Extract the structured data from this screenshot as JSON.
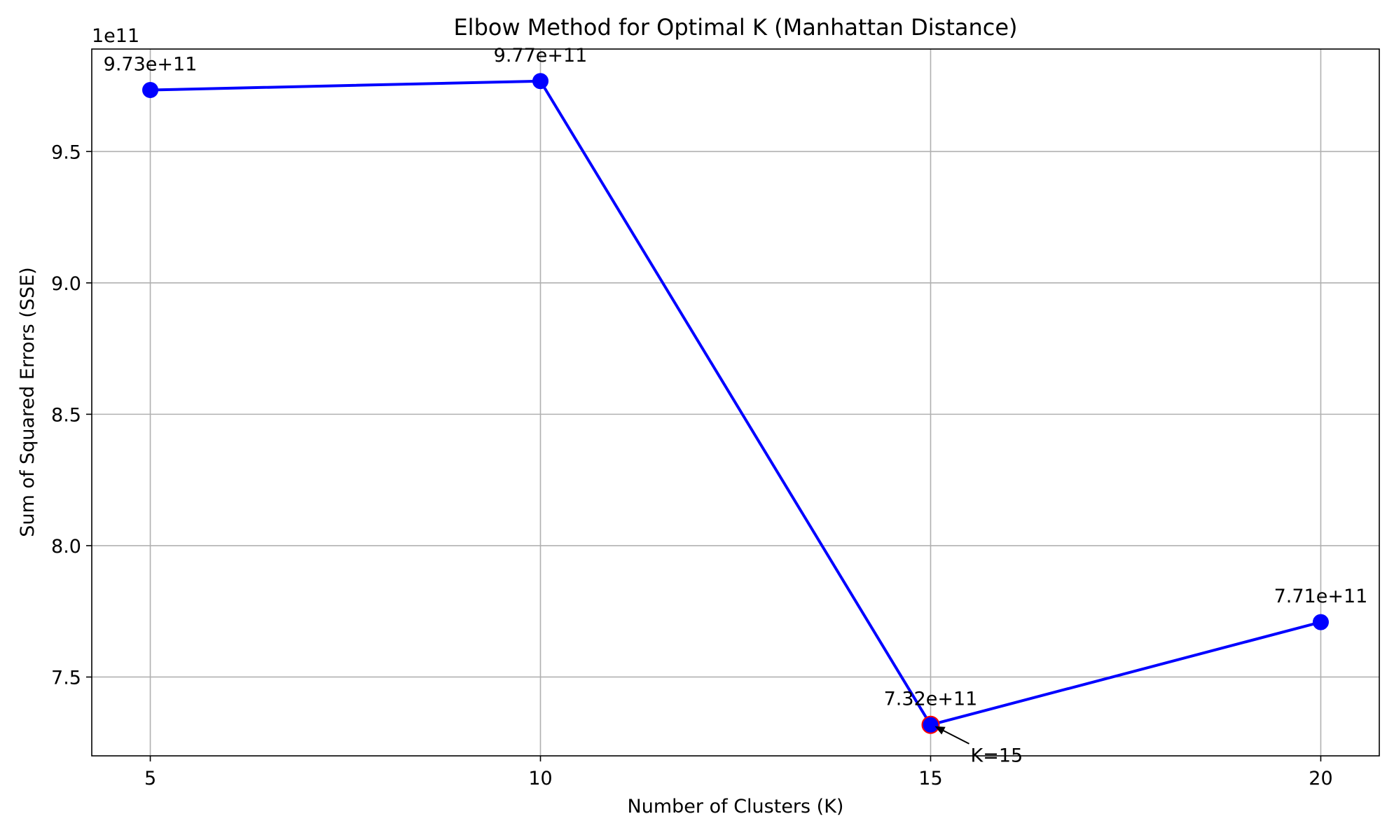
{
  "chart_data": {
    "type": "line",
    "title": "Elbow Method for Optimal K (Manhattan Distance)",
    "xlabel": "Number of Clusters (K)",
    "ylabel": "Sum of Squared Errors (SSE)",
    "offset_label": "1e11",
    "x": [
      5,
      10,
      15,
      20
    ],
    "y": [
      973400000000.0,
      976800000000.0,
      731800000000.0,
      770900000000.0
    ],
    "point_labels": [
      "9.73e+11",
      "9.77e+11",
      "7.32e+11",
      "7.71e+11"
    ],
    "xticks": [
      5,
      10,
      15,
      20
    ],
    "xtick_labels": [
      "5",
      "10",
      "15",
      "20"
    ],
    "yticks": [
      750000000000.0,
      800000000000.0,
      850000000000.0,
      900000000000.0,
      950000000000.0
    ],
    "ytick_labels": [
      "7.5",
      "8.0",
      "8.5",
      "9.0",
      "9.5"
    ],
    "xlim": [
      4.25,
      20.75
    ],
    "ylim": [
      720000000000.0,
      989000000000.0
    ],
    "grid": true,
    "series_color": "#0000ff",
    "highlight": {
      "x": 15,
      "y": 731800000000.0,
      "label": "K=15",
      "edge_color": "#ff0000"
    }
  }
}
